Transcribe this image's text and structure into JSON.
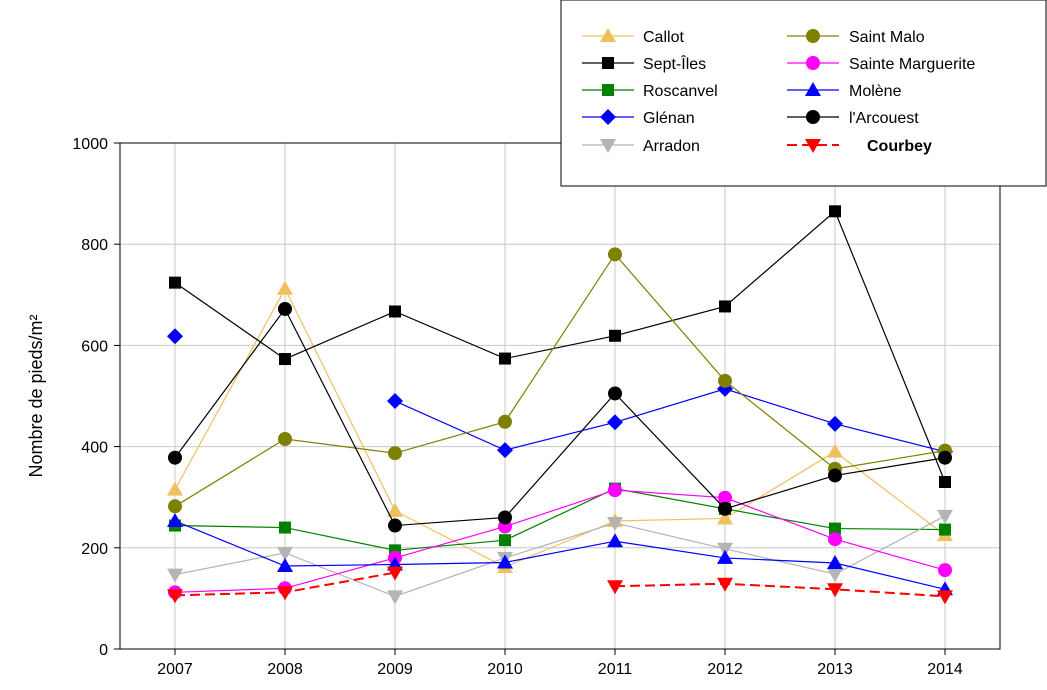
{
  "chart_data": {
    "type": "line",
    "title": "",
    "xlabel": "",
    "ylabel": "Nombre de pieds/m²",
    "x": [
      2007,
      2008,
      2009,
      2010,
      2011,
      2012,
      2013,
      2014
    ],
    "ylim": [
      0,
      1000
    ],
    "yticks": [
      0,
      200,
      400,
      600,
      800,
      1000
    ],
    "grid": true,
    "legend_position": "top-right",
    "series": [
      {
        "name": "Callot",
        "color": "#f0c060",
        "marker": "triangle-up",
        "dash": false,
        "bold": false,
        "values": [
          315,
          712,
          273,
          162,
          253,
          258,
          390,
          225
        ]
      },
      {
        "name": "Sept-Îles",
        "color": "#000000",
        "marker": "square",
        "dash": false,
        "bold": false,
        "values": [
          724,
          573,
          667,
          574,
          619,
          677,
          865,
          330
        ]
      },
      {
        "name": "Roscanvel",
        "color": "#008000",
        "marker": "square",
        "dash": false,
        "bold": false,
        "values": [
          244,
          240,
          195,
          215,
          317,
          277,
          238,
          236
        ]
      },
      {
        "name": "Glénan",
        "color": "#0000ff",
        "marker": "diamond",
        "dash": false,
        "bold": false,
        "values": [
          618,
          null,
          490,
          393,
          448,
          514,
          445,
          390
        ]
      },
      {
        "name": "Arradon",
        "color": "#b4b4b4",
        "marker": "triangle-down",
        "dash": false,
        "bold": false,
        "values": [
          147,
          190,
          104,
          180,
          249,
          198,
          148,
          263
        ]
      },
      {
        "name": "Saint Malo",
        "color": "#808000",
        "marker": "circle",
        "dash": false,
        "bold": false,
        "values": [
          282,
          415,
          387,
          449,
          780,
          530,
          356,
          392
        ]
      },
      {
        "name": "Sainte Marguerite",
        "color": "#ff00ff",
        "marker": "circle",
        "dash": false,
        "bold": false,
        "values": [
          112,
          120,
          180,
          242,
          314,
          299,
          217,
          156
        ]
      },
      {
        "name": "Molène",
        "color": "#0000ff",
        "marker": "triangle-up",
        "dash": false,
        "bold": false,
        "values": [
          253,
          164,
          167,
          171,
          213,
          180,
          170,
          118
        ]
      },
      {
        "name": "l'Arcouest",
        "color": "#000000",
        "marker": "circle",
        "dash": false,
        "bold": false,
        "values": [
          378,
          672,
          244,
          260,
          505,
          277,
          343,
          378
        ]
      },
      {
        "name": "Courbey",
        "color": "#ff0000",
        "marker": "triangle-down",
        "dash": true,
        "bold": true,
        "values": [
          106,
          112,
          151,
          null,
          124,
          129,
          118,
          104
        ]
      }
    ]
  }
}
